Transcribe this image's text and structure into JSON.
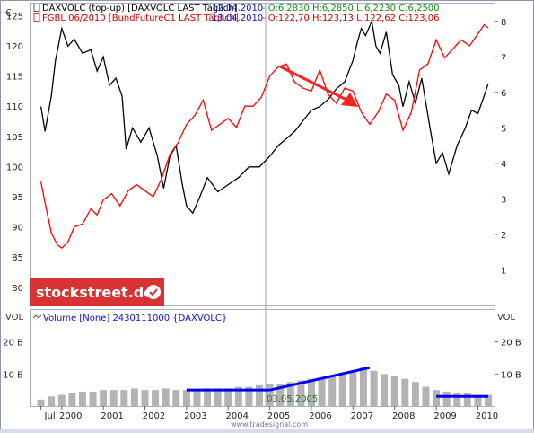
{
  "legend": {
    "line1_prefix": "DAXVOLC (top-up) [DAXVOLC LAST Täglich]",
    "line1_date": "12.04.2010",
    "line1_quote": "- O:6,2830 H:6,2850 L:6,2230 C:6,2500",
    "line2_prefix": "FGBL 06/2010 [BundFutureC1 LAST Täglich]",
    "line2_date": "13.04.2010",
    "line2_quote": "- O:122,70 H:123,13 L:122,62 C:123,06",
    "volume_label": "Volume [None] 2430111000 {DAXVOLC}"
  },
  "branding": {
    "logo_text": "stockstreet.de",
    "footer_source": "www.tradesignal.com"
  },
  "annotation": {
    "date_label": "03.05.2005"
  },
  "colors": {
    "daxvolc": "#000000",
    "fgbl": "#ff0000",
    "trendline": "#0000ff",
    "arrow": "#ff0000",
    "volume_bar": "#a0a0a0",
    "logo_bg": "#e03030"
  },
  "chart_data": [
    {
      "type": "line",
      "title": "",
      "left_axis_unit": "€",
      "left_ticks": [
        "125",
        "120",
        "115",
        "110",
        "105",
        "100",
        "95",
        "90",
        "85",
        "80"
      ],
      "right_ticks": [
        "8",
        "7",
        "6",
        "5",
        "4",
        "3",
        "2",
        "1"
      ],
      "x_ticks": [
        "Jul",
        "2000",
        "2001",
        "2002",
        "2003",
        "2004",
        "2005",
        "2006",
        "2007",
        "2008",
        "2009",
        "2010"
      ],
      "ylim_left": [
        77,
        127
      ],
      "ylim_right": [
        0,
        8.5
      ],
      "grid": false,
      "series": [
        {
          "name": "DAXVOLC (top-up)",
          "axis": "right",
          "x": [
            1999.5,
            1999.6,
            1999.75,
            1999.85,
            2000.0,
            2000.15,
            2000.3,
            2000.5,
            2000.7,
            2000.85,
            2001.0,
            2001.15,
            2001.3,
            2001.45,
            2001.55,
            2001.7,
            2001.9,
            2002.1,
            2002.3,
            2002.45,
            2002.6,
            2002.75,
            2002.9,
            2003.0,
            2003.15,
            2003.3,
            2003.5,
            2003.75,
            2004.0,
            2004.25,
            2004.5,
            2004.75,
            2005.0,
            2005.2,
            2005.4,
            2005.6,
            2005.8,
            2006.0,
            2006.2,
            2006.4,
            2006.6,
            2006.8,
            2007.0,
            2007.1,
            2007.2,
            2007.3,
            2007.45,
            2007.55,
            2007.65,
            2007.8,
            2007.95,
            2008.1,
            2008.2,
            2008.35,
            2008.5,
            2008.65,
            2008.75,
            2008.85,
            2009.0,
            2009.15,
            2009.3,
            2009.5,
            2009.7,
            2009.85,
            2010.0,
            2010.15,
            2010.25
          ],
          "values": [
            5.6,
            4.9,
            5.9,
            6.9,
            7.8,
            7.3,
            7.5,
            7.1,
            7.2,
            6.6,
            7.0,
            6.2,
            6.4,
            5.9,
            4.4,
            5.0,
            4.6,
            5.0,
            4.2,
            3.3,
            4.2,
            4.5,
            3.4,
            2.8,
            2.6,
            3.0,
            3.6,
            3.2,
            3.4,
            3.6,
            3.9,
            3.9,
            4.2,
            4.5,
            4.7,
            4.9,
            5.2,
            5.5,
            5.6,
            5.8,
            6.1,
            6.3,
            6.9,
            7.4,
            7.8,
            7.6,
            8.0,
            7.3,
            7.1,
            7.7,
            6.5,
            6.2,
            5.6,
            6.3,
            5.7,
            6.4,
            5.7,
            5.0,
            4.0,
            4.3,
            3.7,
            4.5,
            5.0,
            5.5,
            5.4,
            5.9,
            6.25
          ]
        },
        {
          "name": "FGBL 06/2010",
          "axis": "left",
          "x": [
            1999.5,
            1999.6,
            1999.75,
            1999.9,
            2000.0,
            2000.15,
            2000.3,
            2000.5,
            2000.7,
            2000.85,
            2001.0,
            2001.2,
            2001.4,
            2001.6,
            2001.8,
            2002.0,
            2002.2,
            2002.4,
            2002.6,
            2002.8,
            2003.0,
            2003.2,
            2003.4,
            2003.6,
            2003.8,
            2004.0,
            2004.2,
            2004.4,
            2004.6,
            2004.8,
            2005.0,
            2005.2,
            2005.4,
            2005.6,
            2005.8,
            2006.0,
            2006.2,
            2006.4,
            2006.6,
            2006.8,
            2007.0,
            2007.2,
            2007.4,
            2007.6,
            2007.8,
            2008.0,
            2008.2,
            2008.4,
            2008.6,
            2008.8,
            2009.0,
            2009.2,
            2009.4,
            2009.6,
            2009.8,
            2010.0,
            2010.15,
            2010.25
          ],
          "values": [
            97.5,
            94.0,
            89.0,
            87.0,
            86.5,
            87.5,
            90.0,
            90.5,
            93.0,
            92.0,
            94.5,
            95.5,
            93.5,
            96.0,
            97.0,
            96.0,
            95.0,
            98.0,
            102.0,
            104.0,
            107.0,
            108.5,
            111.0,
            106.0,
            107.0,
            108.0,
            106.5,
            110.0,
            110.0,
            111.5,
            115.0,
            116.5,
            117.0,
            114.0,
            113.0,
            112.5,
            116.0,
            112.0,
            110.5,
            113.0,
            112.5,
            109.0,
            107.0,
            109.0,
            112.0,
            111.0,
            106.0,
            109.0,
            116.0,
            117.0,
            121.0,
            118.0,
            119.5,
            121.0,
            120.0,
            122.0,
            123.5,
            123.0
          ]
        }
      ]
    },
    {
      "type": "bar",
      "title": "",
      "ylabel": "VOL",
      "y_ticks": [
        "20 B",
        "10 B"
      ],
      "ylim": [
        0,
        30
      ],
      "x_ticks": [
        "Jul",
        "2000",
        "2001",
        "2002",
        "2003",
        "2004",
        "2005",
        "2006",
        "2007",
        "2008",
        "2009",
        "2010"
      ],
      "series": [
        {
          "x": [
            1999.5,
            1999.75,
            2000.0,
            2000.25,
            2000.5,
            2000.75,
            2001.0,
            2001.25,
            2001.5,
            2001.75,
            2002.0,
            2002.25,
            2002.5,
            2002.75,
            2003.0,
            2003.25,
            2003.5,
            2003.75,
            2004.0,
            2004.25,
            2004.5,
            2004.75,
            2005.0,
            2005.25,
            2005.5,
            2005.75,
            2006.0,
            2006.25,
            2006.5,
            2006.75,
            2007.0,
            2007.25,
            2007.5,
            2007.75,
            2008.0,
            2008.25,
            2008.5,
            2008.75,
            2009.0,
            2009.25,
            2009.5,
            2009.75,
            2010.0,
            2010.25
          ],
          "values": [
            2.0,
            3.0,
            3.5,
            4.0,
            4.5,
            4.5,
            5.0,
            5.0,
            5.0,
            5.5,
            5.0,
            5.0,
            5.5,
            5.0,
            5.0,
            5.0,
            5.5,
            5.5,
            5.5,
            6.0,
            6.0,
            6.5,
            7.0,
            7.0,
            7.5,
            8.0,
            8.5,
            9.0,
            9.5,
            10.0,
            11.0,
            12.0,
            11.0,
            10.0,
            9.5,
            8.5,
            7.5,
            6.0,
            5.0,
            4.5,
            4.0,
            4.0,
            3.5,
            3.5
          ]
        }
      ],
      "trendlines": [
        {
          "x": [
            2003.0,
            2005.0
          ],
          "values": [
            5.0,
            5.0
          ]
        },
        {
          "x": [
            2005.0,
            2007.4
          ],
          "values": [
            5.0,
            12.0
          ]
        },
        {
          "x": [
            2009.0,
            2010.25
          ],
          "values": [
            3.0,
            3.0
          ]
        }
      ]
    }
  ]
}
